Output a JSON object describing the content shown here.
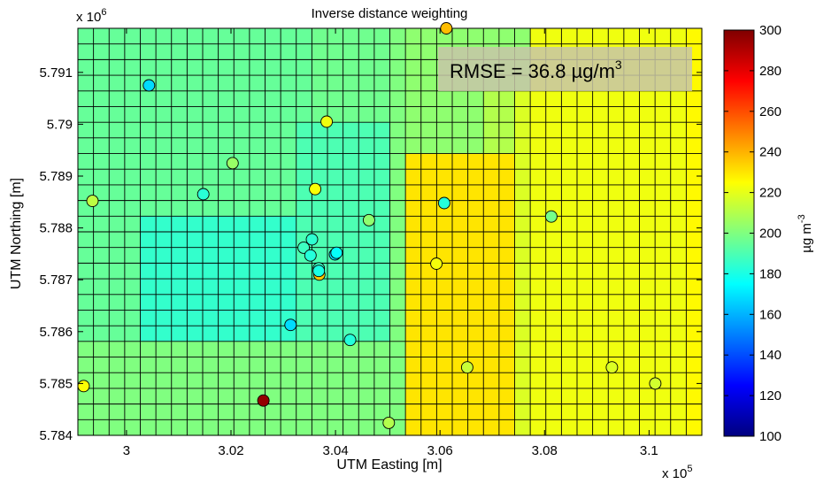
{
  "chart_data": {
    "type": "heatmap",
    "title": "Inverse distance weighting",
    "xlabel": "UTM Easting [m]",
    "ylabel": "UTM Northing [m]",
    "x_multiplier_label": "x 10",
    "x_multiplier_exp": "5",
    "y_multiplier_label": "x 10",
    "y_multiplier_exp": "6",
    "xlim": [
      2.9907,
      3.1101
    ],
    "ylim": [
      5.784,
      5.79185
    ],
    "x_ticks": [
      3,
      3.02,
      3.04,
      3.06,
      3.08,
      3.1
    ],
    "x_tick_labels": [
      "3",
      "3.02",
      "3.04",
      "3.06",
      "3.08",
      "3.1"
    ],
    "y_ticks": [
      5.784,
      5.785,
      5.786,
      5.787,
      5.788,
      5.789,
      5.79,
      5.791
    ],
    "y_tick_labels": [
      "5.784",
      "5.785",
      "5.786",
      "5.787",
      "5.788",
      "5.789",
      "5.79",
      "5.791"
    ],
    "grid": true,
    "annotation": {
      "text": "RMSE = 36.8 µg/m",
      "superscript": "3",
      "box_color": "#c8c5a8"
    },
    "colorbar": {
      "colormap": "jet",
      "min": 100,
      "max": 300,
      "ticks": [
        100,
        120,
        140,
        160,
        180,
        200,
        220,
        240,
        260,
        280,
        300
      ],
      "tick_labels": [
        "100",
        "120",
        "140",
        "160",
        "180",
        "200",
        "220",
        "240",
        "260",
        "280",
        "300"
      ],
      "label": "µg m",
      "label_superscript": "-3"
    },
    "grid_rows": 26,
    "grid_cols": 40,
    "cell_values": [
      [
        195,
        195,
        195,
        195,
        195,
        195,
        195,
        195,
        195,
        195,
        195,
        195,
        195,
        195,
        195,
        197,
        197,
        197,
        197,
        197,
        200,
        203,
        203,
        203,
        203,
        203,
        203,
        203,
        203,
        222,
        222,
        222,
        222,
        222,
        222,
        222,
        222,
        222,
        222,
        226
      ],
      [
        195,
        195,
        195,
        195,
        195,
        195,
        195,
        195,
        195,
        195,
        195,
        195,
        195,
        195,
        195,
        197,
        197,
        197,
        197,
        197,
        200,
        203,
        203,
        203,
        203,
        203,
        203,
        203,
        203,
        222,
        222,
        222,
        222,
        222,
        222,
        222,
        222,
        222,
        222,
        226
      ],
      [
        195,
        195,
        195,
        195,
        195,
        195,
        195,
        195,
        195,
        195,
        195,
        195,
        195,
        195,
        195,
        197,
        197,
        197,
        197,
        197,
        200,
        203,
        203,
        203,
        203,
        203,
        203,
        203,
        203,
        222,
        222,
        222,
        222,
        222,
        222,
        222,
        222,
        222,
        222,
        226
      ],
      [
        195,
        195,
        195,
        195,
        195,
        195,
        195,
        195,
        195,
        195,
        195,
        195,
        195,
        195,
        195,
        197,
        197,
        197,
        197,
        197,
        200,
        203,
        203,
        203,
        203,
        203,
        203,
        203,
        203,
        222,
        222,
        222,
        222,
        222,
        222,
        222,
        222,
        222,
        222,
        226
      ],
      [
        195,
        195,
        195,
        195,
        195,
        195,
        195,
        195,
        195,
        195,
        195,
        195,
        195,
        195,
        195,
        197,
        197,
        197,
        197,
        197,
        200,
        203,
        203,
        203,
        203,
        203,
        210,
        210,
        218,
        222,
        222,
        222,
        222,
        222,
        222,
        222,
        222,
        222,
        222,
        226
      ],
      [
        195,
        195,
        195,
        195,
        195,
        195,
        195,
        195,
        195,
        195,
        195,
        195,
        195,
        195,
        195,
        197,
        197,
        197,
        197,
        197,
        200,
        203,
        203,
        203,
        203,
        203,
        210,
        210,
        218,
        222,
        222,
        222,
        222,
        222,
        222,
        222,
        222,
        222,
        222,
        226
      ],
      [
        195,
        195,
        195,
        195,
        195,
        195,
        195,
        195,
        195,
        195,
        195,
        195,
        195,
        195,
        190,
        190,
        190,
        190,
        190,
        190,
        200,
        203,
        203,
        203,
        203,
        203,
        210,
        210,
        218,
        222,
        222,
        222,
        222,
        222,
        222,
        222,
        222,
        222,
        222,
        226
      ],
      [
        195,
        195,
        195,
        195,
        195,
        195,
        195,
        195,
        195,
        195,
        195,
        195,
        195,
        195,
        190,
        190,
        190,
        190,
        190,
        190,
        200,
        203,
        203,
        203,
        203,
        203,
        210,
        210,
        218,
        222,
        222,
        222,
        222,
        222,
        222,
        222,
        222,
        222,
        222,
        226
      ],
      [
        195,
        195,
        195,
        195,
        195,
        195,
        195,
        195,
        195,
        195,
        195,
        195,
        195,
        195,
        190,
        190,
        190,
        190,
        190,
        190,
        200,
        230,
        230,
        230,
        230,
        230,
        230,
        230,
        218,
        222,
        222,
        222,
        222,
        222,
        222,
        222,
        222,
        222,
        222,
        226
      ],
      [
        195,
        195,
        195,
        195,
        195,
        195,
        195,
        195,
        195,
        195,
        195,
        195,
        195,
        195,
        190,
        190,
        190,
        190,
        190,
        190,
        200,
        230,
        230,
        230,
        230,
        230,
        230,
        230,
        218,
        222,
        222,
        222,
        222,
        222,
        222,
        222,
        222,
        222,
        222,
        226
      ],
      [
        195,
        195,
        195,
        195,
        195,
        195,
        195,
        195,
        195,
        195,
        195,
        195,
        195,
        195,
        190,
        190,
        190,
        190,
        190,
        190,
        200,
        230,
        230,
        230,
        230,
        230,
        230,
        230,
        218,
        222,
        222,
        222,
        222,
        222,
        222,
        222,
        222,
        222,
        222,
        226
      ],
      [
        195,
        195,
        195,
        195,
        195,
        195,
        195,
        195,
        195,
        195,
        195,
        195,
        195,
        195,
        190,
        190,
        190,
        190,
        190,
        190,
        200,
        230,
        230,
        230,
        230,
        230,
        230,
        230,
        218,
        222,
        222,
        222,
        222,
        222,
        222,
        222,
        222,
        222,
        222,
        226
      ],
      [
        195,
        195,
        195,
        195,
        185,
        185,
        185,
        185,
        185,
        185,
        185,
        185,
        185,
        185,
        190,
        190,
        190,
        190,
        190,
        190,
        200,
        230,
        230,
        230,
        230,
        230,
        230,
        230,
        218,
        222,
        222,
        222,
        222,
        222,
        222,
        222,
        222,
        222,
        222,
        226
      ],
      [
        195,
        195,
        195,
        195,
        185,
        185,
        185,
        185,
        185,
        185,
        185,
        185,
        185,
        185,
        190,
        190,
        190,
        190,
        190,
        190,
        200,
        230,
        230,
        230,
        230,
        230,
        230,
        230,
        218,
        222,
        222,
        222,
        222,
        222,
        222,
        222,
        222,
        222,
        222,
        226
      ],
      [
        195,
        195,
        195,
        195,
        185,
        185,
        185,
        185,
        185,
        185,
        185,
        185,
        185,
        185,
        190,
        190,
        190,
        190,
        190,
        190,
        200,
        230,
        230,
        230,
        230,
        230,
        230,
        230,
        218,
        222,
        222,
        222,
        222,
        222,
        222,
        222,
        222,
        222,
        222,
        226
      ],
      [
        195,
        195,
        195,
        195,
        185,
        185,
        185,
        185,
        185,
        185,
        185,
        185,
        185,
        185,
        190,
        190,
        190,
        190,
        190,
        190,
        200,
        230,
        230,
        230,
        230,
        230,
        230,
        230,
        218,
        222,
        222,
        222,
        222,
        222,
        222,
        222,
        222,
        222,
        222,
        226
      ],
      [
        195,
        195,
        195,
        195,
        185,
        185,
        185,
        185,
        185,
        185,
        185,
        185,
        185,
        185,
        190,
        190,
        190,
        190,
        190,
        190,
        200,
        230,
        230,
        230,
        230,
        230,
        230,
        230,
        218,
        222,
        222,
        222,
        222,
        222,
        222,
        222,
        222,
        222,
        222,
        226
      ],
      [
        195,
        195,
        195,
        195,
        185,
        185,
        185,
        185,
        185,
        185,
        185,
        185,
        185,
        185,
        190,
        190,
        190,
        190,
        190,
        190,
        200,
        230,
        230,
        230,
        230,
        230,
        230,
        230,
        218,
        222,
        222,
        222,
        222,
        222,
        222,
        222,
        222,
        222,
        222,
        226
      ],
      [
        195,
        195,
        195,
        195,
        185,
        185,
        185,
        185,
        185,
        185,
        185,
        185,
        185,
        185,
        190,
        190,
        190,
        190,
        190,
        190,
        200,
        230,
        230,
        230,
        230,
        230,
        230,
        230,
        218,
        222,
        222,
        222,
        222,
        222,
        222,
        222,
        222,
        222,
        222,
        226
      ],
      [
        195,
        195,
        195,
        195,
        185,
        185,
        185,
        185,
        185,
        185,
        185,
        185,
        185,
        185,
        190,
        190,
        190,
        190,
        190,
        190,
        200,
        230,
        230,
        230,
        230,
        230,
        230,
        230,
        218,
        222,
        222,
        222,
        222,
        222,
        222,
        222,
        222,
        222,
        222,
        226
      ],
      [
        200,
        200,
        200,
        200,
        200,
        200,
        200,
        200,
        200,
        200,
        200,
        200,
        200,
        200,
        200,
        200,
        200,
        200,
        200,
        200,
        200,
        230,
        230,
        230,
        230,
        230,
        230,
        230,
        218,
        222,
        222,
        222,
        222,
        222,
        222,
        222,
        222,
        222,
        222,
        226
      ],
      [
        200,
        200,
        200,
        200,
        200,
        200,
        200,
        200,
        200,
        200,
        200,
        200,
        200,
        200,
        200,
        200,
        200,
        200,
        200,
        200,
        200,
        230,
        230,
        230,
        230,
        230,
        230,
        230,
        218,
        222,
        222,
        222,
        222,
        222,
        222,
        222,
        222,
        222,
        222,
        226
      ],
      [
        200,
        200,
        200,
        200,
        200,
        200,
        200,
        200,
        200,
        200,
        200,
        200,
        200,
        200,
        200,
        200,
        200,
        200,
        200,
        200,
        200,
        230,
        230,
        230,
        230,
        230,
        230,
        230,
        218,
        222,
        222,
        222,
        222,
        222,
        222,
        222,
        222,
        222,
        222,
        226
      ],
      [
        200,
        200,
        200,
        200,
        200,
        200,
        200,
        200,
        200,
        200,
        200,
        200,
        200,
        200,
        200,
        200,
        200,
        200,
        200,
        200,
        200,
        230,
        230,
        230,
        230,
        230,
        230,
        230,
        218,
        222,
        222,
        222,
        222,
        222,
        222,
        222,
        222,
        222,
        222,
        226
      ],
      [
        200,
        200,
        200,
        200,
        200,
        200,
        200,
        200,
        200,
        200,
        200,
        200,
        200,
        200,
        200,
        200,
        200,
        200,
        200,
        200,
        200,
        230,
        230,
        230,
        230,
        230,
        230,
        230,
        218,
        222,
        222,
        222,
        222,
        222,
        222,
        222,
        222,
        222,
        222,
        226
      ],
      [
        200,
        200,
        200,
        200,
        200,
        200,
        200,
        200,
        200,
        200,
        200,
        200,
        200,
        200,
        200,
        200,
        200,
        200,
        200,
        200,
        200,
        230,
        230,
        230,
        230,
        230,
        230,
        230,
        218,
        222,
        222,
        222,
        222,
        222,
        222,
        222,
        222,
        222,
        222,
        226
      ]
    ],
    "stations": [
      {
        "x": 3.0043,
        "y": 5.79075,
        "value": 168
      },
      {
        "x": 3.0612,
        "y": 5.79185,
        "value": 238
      },
      {
        "x": 3.0383,
        "y": 5.79005,
        "value": 222
      },
      {
        "x": 3.0203,
        "y": 5.78925,
        "value": 205
      },
      {
        "x": 3.0147,
        "y": 5.78865,
        "value": 183
      },
      {
        "x": 2.9935,
        "y": 5.78852,
        "value": 212
      },
      {
        "x": 3.0361,
        "y": 5.78875,
        "value": 224
      },
      {
        "x": 3.0464,
        "y": 5.78815,
        "value": 203
      },
      {
        "x": 3.0608,
        "y": 5.78848,
        "value": 182
      },
      {
        "x": 3.0813,
        "y": 5.78822,
        "value": 198
      },
      {
        "x": 3.0355,
        "y": 5.78778,
        "value": 184
      },
      {
        "x": 3.0339,
        "y": 5.78762,
        "value": 187
      },
      {
        "x": 3.0352,
        "y": 5.78747,
        "value": 182
      },
      {
        "x": 3.0399,
        "y": 5.78749,
        "value": 168
      },
      {
        "x": 3.0402,
        "y": 5.78752,
        "value": 176
      },
      {
        "x": 3.0368,
        "y": 5.78722,
        "value": 186
      },
      {
        "x": 3.0369,
        "y": 5.7871,
        "value": 236
      },
      {
        "x": 3.0368,
        "y": 5.78717,
        "value": 180
      },
      {
        "x": 3.0593,
        "y": 5.78731,
        "value": 223
      },
      {
        "x": 3.0314,
        "y": 5.78613,
        "value": 168
      },
      {
        "x": 3.0428,
        "y": 5.78584,
        "value": 182
      },
      {
        "x": 3.0652,
        "y": 5.78531,
        "value": 214
      },
      {
        "x": 3.0929,
        "y": 5.78531,
        "value": 218
      },
      {
        "x": 3.1012,
        "y": 5.785,
        "value": 216
      },
      {
        "x": 2.9918,
        "y": 5.78495,
        "value": 224
      },
      {
        "x": 3.0262,
        "y": 5.78467,
        "value": 296
      },
      {
        "x": 3.0502,
        "y": 5.78424,
        "value": 210
      }
    ]
  }
}
